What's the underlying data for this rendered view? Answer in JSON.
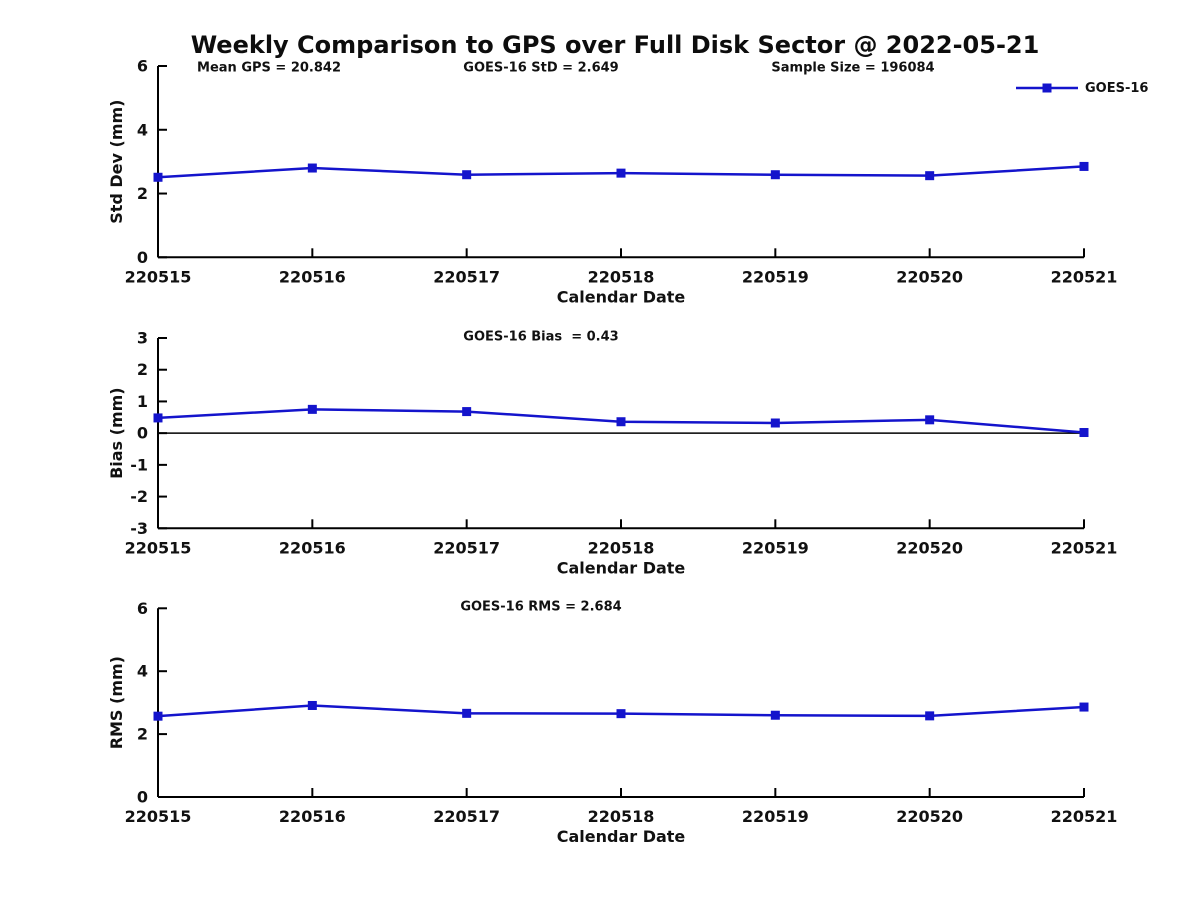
{
  "page": {
    "title": "Weekly Comparison to GPS over Full Disk Sector @ 2022-05-21"
  },
  "legend": {
    "label": "GOES-16"
  },
  "colors": {
    "series": "#1414cc",
    "axis": "#000000",
    "text": "#111111"
  },
  "chart_data": [
    {
      "type": "line",
      "title_annotations": [
        {
          "text": "Mean GPS = 20.842"
        },
        {
          "text": "GOES-16 StD = 2.649"
        },
        {
          "text": "Sample Size = 196084"
        }
      ],
      "x": [
        "220515",
        "220516",
        "220517",
        "220518",
        "220519",
        "220520",
        "220521"
      ],
      "xlabel": "Calendar Date",
      "ylabel": "Std Dev (mm)",
      "ylim": [
        0,
        6
      ],
      "yticks": [
        0,
        2,
        4,
        6
      ],
      "grid": false,
      "legend_position": "top-right",
      "series": [
        {
          "name": "GOES-16",
          "marker": "square",
          "values": [
            2.51,
            2.8,
            2.59,
            2.64,
            2.59,
            2.56,
            2.85
          ]
        }
      ]
    },
    {
      "type": "line",
      "title_annotations": [
        {
          "text": "GOES-16 Bias  = 0.43"
        }
      ],
      "x": [
        "220515",
        "220516",
        "220517",
        "220518",
        "220519",
        "220520",
        "220521"
      ],
      "xlabel": "Calendar Date",
      "ylabel": "Bias (mm)",
      "ylim": [
        -3,
        3
      ],
      "yticks": [
        3,
        2,
        1,
        0,
        -1,
        -2,
        -3
      ],
      "zero_line": true,
      "grid": false,
      "series": [
        {
          "name": "GOES-16",
          "marker": "square",
          "values": [
            0.48,
            0.75,
            0.68,
            0.36,
            0.32,
            0.42,
            0.02
          ]
        }
      ]
    },
    {
      "type": "line",
      "title_annotations": [
        {
          "text": "GOES-16 RMS = 2.684"
        }
      ],
      "x": [
        "220515",
        "220516",
        "220517",
        "220518",
        "220519",
        "220520",
        "220521"
      ],
      "xlabel": "Calendar Date",
      "ylabel": "RMS (mm)",
      "ylim": [
        0,
        6
      ],
      "yticks": [
        0,
        2,
        4,
        6
      ],
      "grid": false,
      "series": [
        {
          "name": "GOES-16",
          "marker": "square",
          "values": [
            2.57,
            2.91,
            2.66,
            2.65,
            2.6,
            2.58,
            2.86
          ]
        }
      ]
    }
  ]
}
